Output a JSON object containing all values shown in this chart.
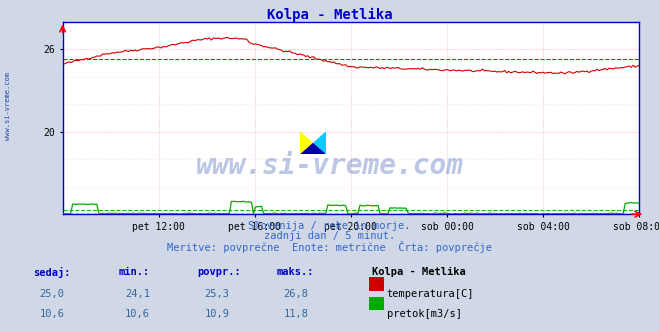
{
  "title": "Kolpa - Metlika",
  "title_color": "#0000cc",
  "bg_color": "#d0d8e8",
  "plot_bg_color": "#ffffff",
  "grid_color_v": "#ff9999",
  "grid_color_h": "#ffcccc",
  "watermark_text": "www.si-vreme.com",
  "watermark_color": "#2244aa",
  "sidebar_text": "www.si-vreme.com",
  "sidebar_color": "#2244aa",
  "xlabel_ticks": [
    "pet 12:00",
    "pet 16:00",
    "pet 20:00",
    "sob 00:00",
    "sob 04:00",
    "sob 08:00"
  ],
  "tick_positions": [
    48,
    96,
    144,
    192,
    240,
    288
  ],
  "xlim": [
    0,
    288
  ],
  "temp_ylim": [
    14.0,
    28.0
  ],
  "temp_yticks": [
    20,
    26
  ],
  "temp_avg": 25.3,
  "flow_avg": 10.9,
  "temp_color": "#cc0000",
  "flow_color": "#00aa00",
  "purple_color": "#8800aa",
  "dashed_temp_color": "#cc0000",
  "dashed_flow_color": "#00aa00",
  "dashed_purple_color": "#8800aa",
  "bottom_text1": "Slovenija / reke in morje.",
  "bottom_text2": "zadnji dan / 5 minut.",
  "bottom_text3": "Meritve: povprečne  Enote: metrične  Črta: povprečje",
  "bottom_color": "#3366cc",
  "stats_label_color": "#0000cc",
  "stats_value_color": "#336699",
  "stats_headers": [
    "sedaj:",
    "min.:",
    "povpr.:",
    "maks.:"
  ],
  "stats_temp": [
    "25,0",
    "24,1",
    "25,3",
    "26,8"
  ],
  "stats_flow": [
    "10,6",
    "10,6",
    "10,9",
    "11,8"
  ],
  "legend_title": "Kolpa - Metlika",
  "legend_temp": "temperatura[C]",
  "legend_flow": "pretok[m3/s]",
  "flow_scale_min": 0.0,
  "flow_scale_max": 28.0,
  "flow_raw_min": 0.0,
  "flow_raw_max": 28.0
}
